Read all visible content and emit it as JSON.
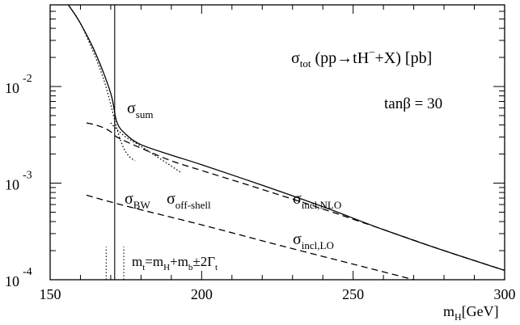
{
  "chart_data": {
    "type": "line",
    "title": "σtot (pp→tH−+X) [pb]",
    "title_parts": {
      "sym": "σ",
      "sub": "tot",
      "rest": " (pp→tH",
      "sup": "−",
      "rest2": "+X) [pb]"
    },
    "subtitle": "tanβ = 30",
    "xlabel": "m_H[GeV]",
    "xlabel_parts": {
      "main": "m",
      "sub": "H",
      "rest": "[GeV]"
    },
    "xlim": [
      150,
      300
    ],
    "ylim": [
      0.0001,
      0.07
    ],
    "yscale": "log",
    "grid": false,
    "x_ticks": [
      150,
      200,
      250,
      300
    ],
    "x_tick_labels": [
      "150",
      "200",
      "250",
      "300"
    ],
    "y_ticks": [
      0.0001,
      0.001,
      0.01
    ],
    "y_tick_labels": [
      {
        "base": "10",
        "exp": "-4"
      },
      {
        "base": "10",
        "exp": "-3"
      },
      {
        "base": "10",
        "exp": "-2"
      }
    ],
    "series": [
      {
        "style": "solid",
        "x": [
          156,
          160,
          165,
          170,
          172,
          175,
          180,
          190,
          200,
          220,
          240,
          260,
          280,
          300
        ],
        "y": [
          0.07,
          0.045,
          0.022,
          0.0085,
          0.0043,
          0.0032,
          0.0025,
          0.00195,
          0.00155,
          0.00095,
          0.00057,
          0.00033,
          0.0002,
          0.000125
        ]
      },
      {
        "style": "dashed",
        "x": [
          162,
          165,
          168,
          170,
          172,
          175,
          180,
          190,
          200,
          220,
          240,
          260,
          280,
          300
        ],
        "y": [
          0.0042,
          0.004,
          0.0037,
          0.0034,
          0.003,
          0.0027,
          0.0023,
          0.0017,
          0.00135,
          0.00086,
          0.00054,
          0.00033,
          0.0002,
          0.000125
        ]
      },
      {
        "style": "dashed",
        "x": [
          162,
          175,
          200,
          225,
          250,
          270
        ],
        "y": [
          0.00075,
          0.00058,
          0.00037,
          0.00023,
          0.000145,
          0.0001
        ]
      },
      {
        "style": "dotted",
        "x": [
          156,
          160,
          165,
          168,
          170,
          172,
          174,
          176,
          178
        ],
        "y": [
          0.07,
          0.045,
          0.02,
          0.011,
          0.0065,
          0.0037,
          0.0024,
          0.0019,
          0.0017
        ]
      },
      {
        "style": "dotted",
        "x": [
          170,
          172,
          175,
          180,
          185,
          190,
          193
        ],
        "y": [
          0.0042,
          0.0036,
          0.003,
          0.0024,
          0.0019,
          0.0015,
          0.0013
        ]
      }
    ],
    "vertical_lines": [
      {
        "x": 171.3,
        "style": "solid",
        "y_top": 0.07
      },
      {
        "x": 168.5,
        "style": "dotted",
        "y_top": 0.00022
      },
      {
        "x": 174.3,
        "style": "dotted",
        "y_top": 0.00022
      }
    ],
    "annotations": [
      {
        "id": "sum",
        "sym": "σ",
        "sub": "sum",
        "x": 175,
        "y": 0.0055
      },
      {
        "id": "bw",
        "sym": "σ",
        "sub": "BW",
        "x": 175,
        "y": 0.00075
      },
      {
        "id": "offshell",
        "sym": "σ",
        "sub": "off-shell",
        "x": 184,
        "y": 0.00075
      },
      {
        "id": "incl-nlo",
        "sym": "σ",
        "sub": "incl,NLO",
        "x": 232,
        "y": 0.00075
      },
      {
        "id": "incl-lo",
        "sym": "σ",
        "sub": "incl,LO",
        "x": 232,
        "y": 0.00023
      },
      {
        "id": "mt-window",
        "main": "m",
        "sub": "t",
        "rest": "=m",
        "sub2": "H",
        "rest2": "+m",
        "sub3": "b",
        "rest3": "±2Γ",
        "sub4": "t",
        "x": 176,
        "y": 0.00014
      }
    ]
  }
}
